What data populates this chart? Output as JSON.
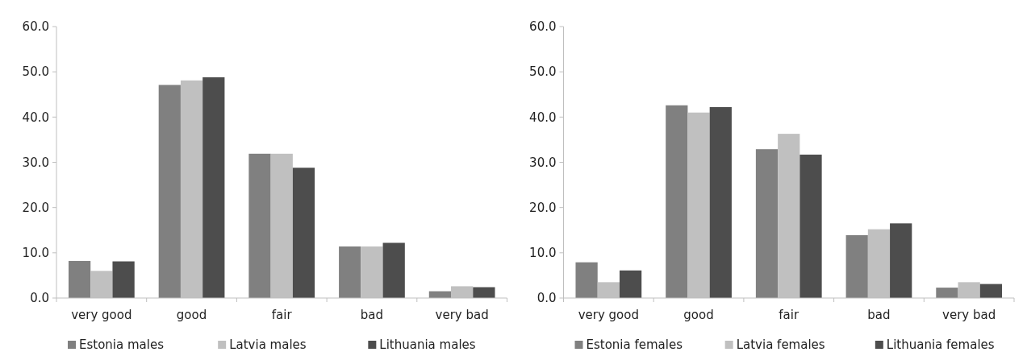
{
  "chart_data": [
    {
      "type": "bar",
      "categories": [
        "very good",
        "good",
        "fair",
        "bad",
        "very bad"
      ],
      "series": [
        {
          "name": "Estonia males",
          "color": "#808080",
          "values": [
            8.2,
            47.1,
            31.9,
            11.4,
            1.5
          ]
        },
        {
          "name": "Latvia males",
          "color": "#c0c0c0",
          "values": [
            6.0,
            48.1,
            31.9,
            11.4,
            2.6
          ]
        },
        {
          "name": "Lithuania males",
          "color": "#4d4d4d",
          "values": [
            8.1,
            48.8,
            28.8,
            12.2,
            2.4
          ]
        }
      ],
      "ylim": [
        0,
        60
      ],
      "yticks": [
        {
          "value": 0,
          "label": "0.0"
        },
        {
          "value": 10,
          "label": "10.0"
        },
        {
          "value": 20,
          "label": "20.0"
        },
        {
          "value": 30,
          "label": "30.0"
        },
        {
          "value": 40,
          "label": "40.0"
        },
        {
          "value": 50,
          "label": "50.0"
        },
        {
          "value": 60,
          "label": "60.0"
        }
      ],
      "grid": false,
      "legend": "bottom"
    },
    {
      "type": "bar",
      "categories": [
        "very good",
        "good",
        "fair",
        "bad",
        "very bad"
      ],
      "series": [
        {
          "name": "Estonia females",
          "color": "#808080",
          "values": [
            7.9,
            42.6,
            32.9,
            13.9,
            2.3
          ]
        },
        {
          "name": "Latvia females",
          "color": "#c0c0c0",
          "values": [
            3.5,
            41.0,
            36.3,
            15.2,
            3.5
          ]
        },
        {
          "name": "Lithuania females",
          "color": "#4d4d4d",
          "values": [
            6.1,
            42.2,
            31.7,
            16.5,
            3.1
          ]
        }
      ],
      "ylim": [
        0,
        60
      ],
      "yticks": [
        {
          "value": 0,
          "label": "0.0"
        },
        {
          "value": 10,
          "label": "10.0"
        },
        {
          "value": 20,
          "label": "20.0"
        },
        {
          "value": 30,
          "label": "30.0"
        },
        {
          "value": 40,
          "label": "40.0"
        },
        {
          "value": 50,
          "label": "50.0"
        },
        {
          "value": 60,
          "label": "60.0"
        }
      ],
      "grid": false,
      "legend": "bottom"
    }
  ]
}
